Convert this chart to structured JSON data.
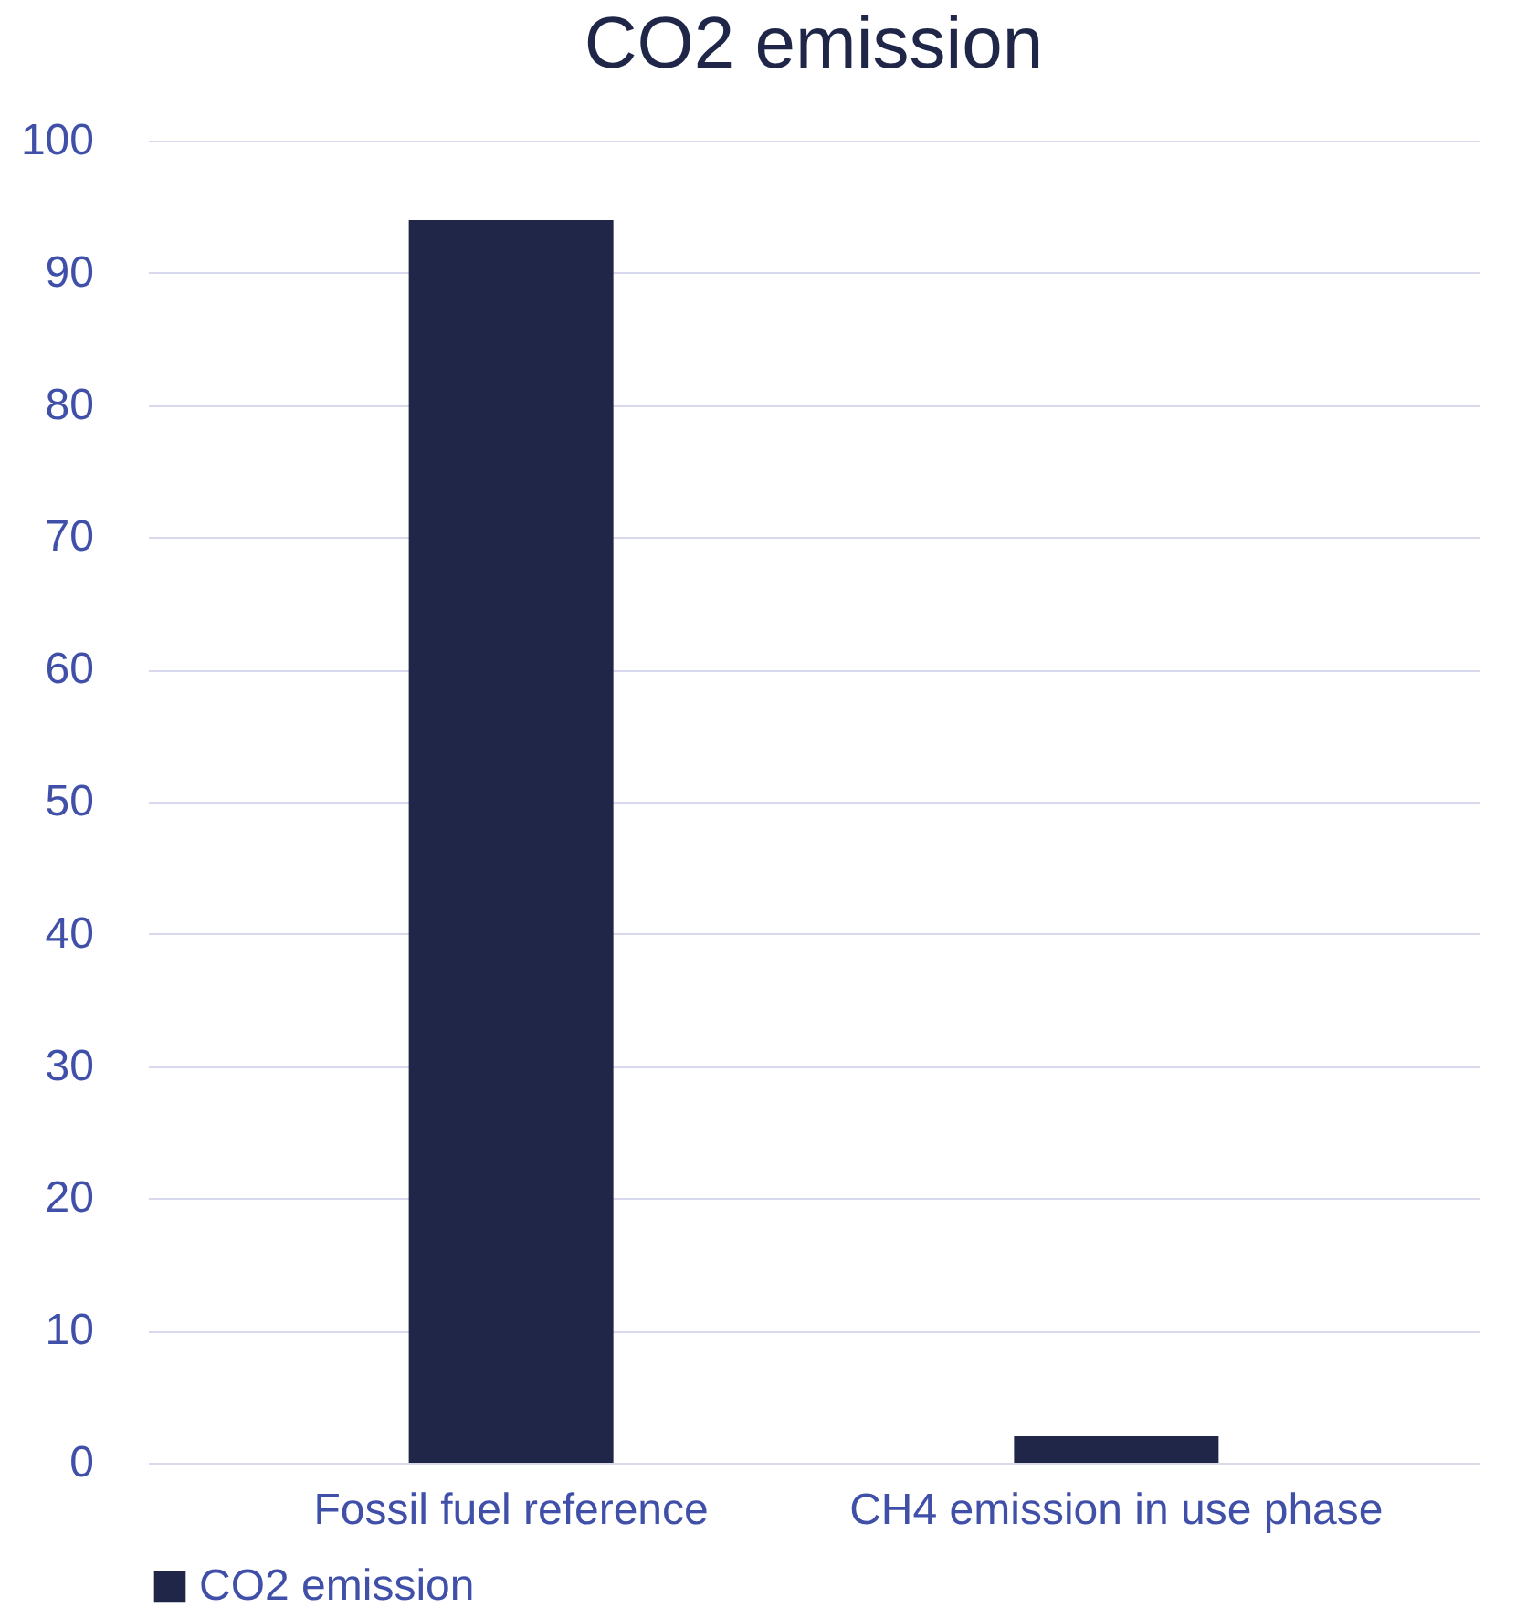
{
  "chart_data": {
    "type": "bar",
    "title": "CO2 emission",
    "categories": [
      "Fossil fuel reference",
      "CH4 emission in use phase"
    ],
    "series": [
      {
        "name": "CO2 emission",
        "color": "#1f2648",
        "values": [
          94,
          2
        ]
      }
    ],
    "ylim": [
      0,
      100
    ],
    "yticks": [
      0,
      10,
      20,
      30,
      40,
      50,
      60,
      70,
      80,
      90,
      100
    ],
    "grid": "y",
    "legend": "bottom"
  }
}
